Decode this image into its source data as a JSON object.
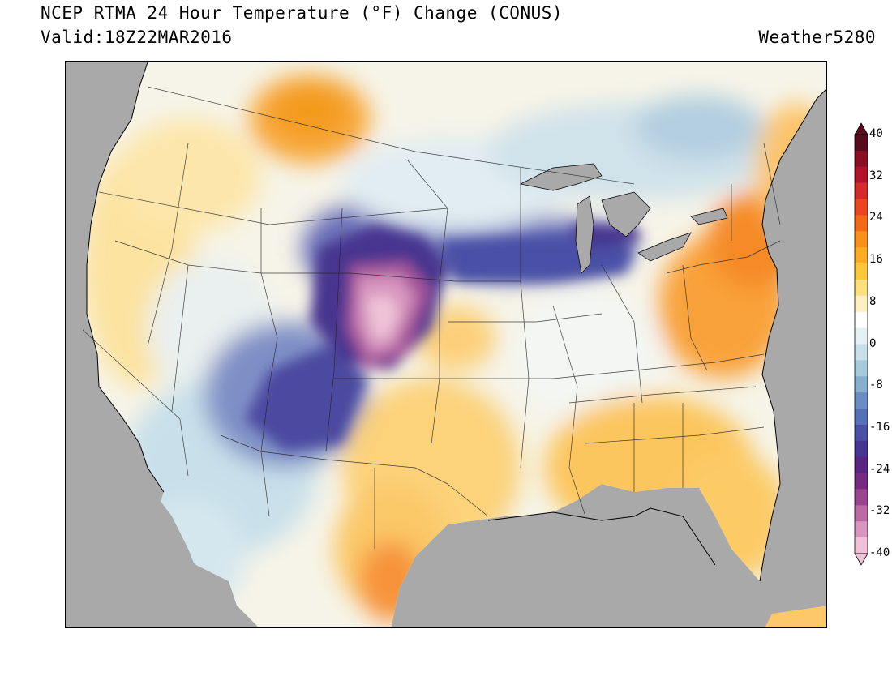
{
  "header": {
    "title": "NCEP RTMA 24 Hour Temperature (°F) Change (CONUS)",
    "valid": "Valid:18Z22MAR2016",
    "credit": "Weather5280"
  },
  "colorbar": {
    "labels": [
      "40",
      "32",
      "24",
      "16",
      "8",
      "0",
      "-8",
      "-16",
      "-24",
      "-32",
      "-40"
    ],
    "range": [
      -40,
      40
    ],
    "colors_top_to_bottom": [
      "#5a0a1e",
      "#8b0f24",
      "#b3122b",
      "#d42a2a",
      "#e9451f",
      "#f36a16",
      "#f8901a",
      "#fbac22",
      "#fcc83a",
      "#fde07e",
      "#fef0c0",
      "#ffffff",
      "#e6f1f6",
      "#c8e0ea",
      "#a6cbdb",
      "#86afd0",
      "#6a8ec4",
      "#5470b6",
      "#4a4fa6",
      "#46368f",
      "#5a2580",
      "#782a83",
      "#99458f",
      "#bb6aa4",
      "#d895bf",
      "#f0c2d8"
    ],
    "upper_arrow_color": "#5a0a1e",
    "lower_arrow_color": "#f0c2d8"
  },
  "map": {
    "ocean_color": "#a9a9a9",
    "notable_features": [
      "strong cooling (purple to pink) over Colorado, Wyoming, Nebraska and Kansas",
      "warming (orange) over the Northeast and Mid-Atlantic",
      "warming (orange) over Montana",
      "cooling band (blue) across Iowa and the Great Lakes"
    ]
  }
}
